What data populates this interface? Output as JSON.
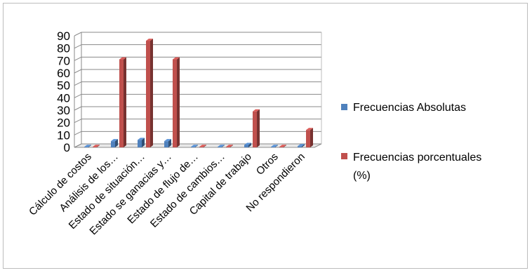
{
  "chart_data": {
    "type": "bar",
    "style": "3d-clustered-column",
    "categories": [
      "Cálculo de costos",
      "Análisis de los…",
      "Estado de situación…",
      "Estado se ganacias y…",
      "Estado de flujo de…",
      "Estado de cambios…",
      "Capital de trabajo",
      "Otros",
      "No respondieron"
    ],
    "series": [
      {
        "name": "Frecuencias Absolutas",
        "color": "#4f81bd",
        "values": [
          0,
          5,
          6,
          5,
          0,
          0,
          2,
          0,
          1
        ]
      },
      {
        "name": "Frecuencias porcentuales (%)",
        "color": "#c0504d",
        "values": [
          0,
          71,
          86,
          71,
          0,
          0,
          29,
          0,
          14
        ]
      }
    ],
    "y_ticks": [
      "0",
      "10",
      "20",
      "30",
      "40",
      "50",
      "60",
      "70",
      "80",
      "90"
    ],
    "ylim": [
      0,
      90
    ],
    "grid": true,
    "legend_position": "right",
    "legend": [
      {
        "line1": "Frecuencias Absolutas",
        "line2": ""
      },
      {
        "line1": "Frecuencias porcentuales",
        "line2": "(%)"
      }
    ]
  }
}
